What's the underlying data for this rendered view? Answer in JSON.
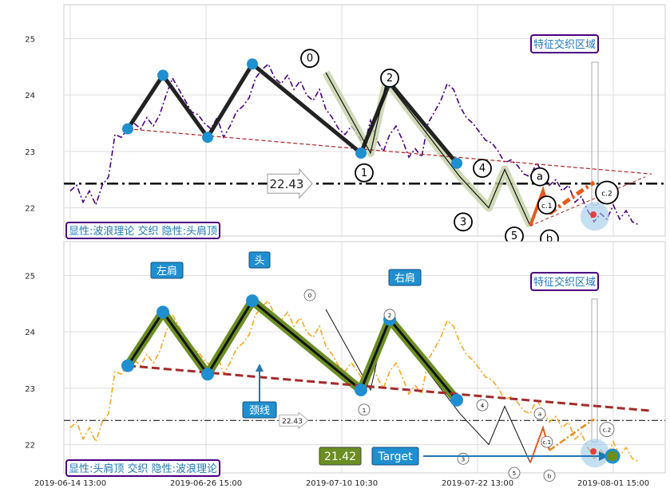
{
  "chart_data": [
    {
      "type": "line",
      "ylim": [
        21.5,
        25.6
      ],
      "yticks": [
        22,
        23,
        24,
        25
      ],
      "dateticks": [
        "2019-06-14 13:00",
        "2019-06-26 15:00",
        "2019-07-10 10:30",
        "2019-07-22 13:00",
        "2019-08-01 15:00"
      ],
      "xrange": [
        0,
        100
      ],
      "price_color": "#4b0082",
      "price_style": "dashdot",
      "price": [
        [
          0,
          22.3
        ],
        [
          1,
          22.4
        ],
        [
          2,
          22.1
        ],
        [
          3,
          22.3
        ],
        [
          4,
          22.05
        ],
        [
          5,
          22.4
        ],
        [
          6,
          22.55
        ],
        [
          7,
          23.3
        ],
        [
          8,
          23.25
        ],
        [
          9,
          23.4
        ],
        [
          10,
          23.5
        ],
        [
          11,
          23.4
        ],
        [
          12,
          23.6
        ],
        [
          13,
          23.45
        ],
        [
          14,
          23.65
        ],
        [
          15,
          24.0
        ],
        [
          16,
          24.3
        ],
        [
          17,
          24.1
        ],
        [
          18,
          23.9
        ],
        [
          19,
          23.7
        ],
        [
          20,
          23.65
        ],
        [
          21,
          23.5
        ],
        [
          22,
          23.4
        ],
        [
          23,
          23.6
        ],
        [
          24,
          23.25
        ],
        [
          25,
          23.45
        ],
        [
          26,
          23.7
        ],
        [
          27,
          23.8
        ],
        [
          28,
          23.95
        ],
        [
          29,
          24.3
        ],
        [
          30,
          24.45
        ],
        [
          31,
          24.55
        ],
        [
          32,
          24.3
        ],
        [
          33,
          24.2
        ],
        [
          34,
          24.35
        ],
        [
          35,
          24.1
        ],
        [
          36,
          24.25
        ],
        [
          37,
          24.0
        ],
        [
          38,
          23.9
        ],
        [
          39,
          24.1
        ],
        [
          40,
          23.75
        ],
        [
          41,
          23.6
        ],
        [
          42,
          23.4
        ],
        [
          43,
          23.3
        ],
        [
          44,
          23.45
        ],
        [
          45,
          23.3
        ],
        [
          46,
          23.1
        ],
        [
          47,
          23.55
        ],
        [
          48,
          23.2
        ],
        [
          49,
          23.0
        ],
        [
          50,
          23.3
        ],
        [
          51,
          23.45
        ],
        [
          52,
          23.2
        ],
        [
          53,
          22.9
        ],
        [
          54,
          23.05
        ],
        [
          55,
          22.9
        ],
        [
          56,
          23.5
        ],
        [
          57,
          23.7
        ],
        [
          58,
          23.9
        ],
        [
          59,
          24.2
        ],
        [
          60,
          24.1
        ],
        [
          61,
          23.8
        ],
        [
          62,
          23.6
        ],
        [
          63,
          23.5
        ],
        [
          64,
          23.35
        ],
        [
          65,
          23.2
        ],
        [
          66,
          23.15
        ],
        [
          67,
          23.0
        ],
        [
          68,
          22.8
        ],
        [
          69,
          22.85
        ],
        [
          70,
          22.75
        ],
        [
          71,
          22.6
        ],
        [
          72,
          22.55
        ],
        [
          73,
          22.8
        ],
        [
          74,
          22.6
        ],
        [
          75,
          22.4
        ],
        [
          76,
          22.5
        ],
        [
          77,
          22.3
        ],
        [
          78,
          22.4
        ],
        [
          79,
          22.1
        ],
        [
          80,
          22.2
        ],
        [
          81,
          21.95
        ],
        [
          82,
          21.75
        ],
        [
          83,
          21.9
        ],
        [
          84,
          21.8
        ],
        [
          85,
          22.05
        ],
        [
          86,
          21.8
        ],
        [
          87,
          21.95
        ],
        [
          88,
          21.75
        ],
        [
          89,
          21.7
        ]
      ],
      "hs_points": [
        [
          9,
          23.4
        ],
        [
          14.5,
          24.35
        ],
        [
          21.5,
          23.25
        ],
        [
          28.5,
          24.55
        ],
        [
          45.5,
          22.97
        ],
        [
          50,
          24.22
        ],
        [
          60.5,
          22.79
        ]
      ],
      "neckline": [
        [
          9,
          23.4
        ],
        [
          91,
          22.6
        ]
      ],
      "wave_main": [
        [
          40,
          24.4
        ],
        [
          47,
          22.97
        ],
        [
          49.5,
          24.25
        ],
        [
          61,
          22.55
        ],
        [
          65.5,
          22.0
        ],
        [
          68,
          22.68
        ],
        [
          72,
          21.68
        ]
      ],
      "wave_labels": [
        {
          "text": "0",
          "x": 37.5,
          "y": 24.65
        },
        {
          "text": "1",
          "x": 46,
          "y": 22.62
        },
        {
          "text": "2",
          "x": 50,
          "y": 24.3
        },
        {
          "text": "3",
          "x": 61.5,
          "y": 21.75
        },
        {
          "text": "4",
          "x": 64.5,
          "y": 22.7
        },
        {
          "text": "5",
          "x": 69.5,
          "y": 21.5
        },
        {
          "text": "a",
          "x": 73.5,
          "y": 22.55
        },
        {
          "text": "c.1",
          "x": 74.6,
          "y": 22.05
        },
        {
          "text": "b",
          "x": 75,
          "y": 21.45
        },
        {
          "text": "c.2",
          "x": 84,
          "y": 22.27
        }
      ],
      "ab_line": [
        [
          72,
          21.68
        ],
        [
          74,
          22.3
        ],
        [
          75,
          21.9
        ]
      ],
      "c_line": [
        [
          75,
          21.9
        ],
        [
          80,
          22.3
        ],
        [
          82,
          22.45
        ]
      ],
      "hline": 22.43,
      "hline_label": "22.43",
      "zone_label": "特征交织区域",
      "bottom_label": "显性:波浪理论 交织 隐性:头肩顶"
    },
    {
      "type": "line",
      "ylim": [
        21.5,
        25.6
      ],
      "yticks": [
        22,
        23,
        24,
        25
      ],
      "price_color": "#f5a623",
      "price_style": "dashdot",
      "hs_points": [
        [
          9,
          23.4
        ],
        [
          14.5,
          24.35
        ],
        [
          21.5,
          23.25
        ],
        [
          28.5,
          24.55
        ],
        [
          45.5,
          22.97
        ],
        [
          50,
          24.22
        ],
        [
          60.5,
          22.79
        ]
      ],
      "neckline": [
        [
          9,
          23.4
        ],
        [
          91,
          22.6
        ]
      ],
      "shoulder_labels": [
        "左肩",
        "头",
        "右肩"
      ],
      "neck_label": "颈线",
      "hline": 22.43,
      "hline_label": "22.43",
      "zone_label": "特征交织区域",
      "target_label": "Target",
      "target_value": "21.42",
      "bottom_label": "显性:头肩顶 交织 隐性:波浪理论"
    }
  ]
}
